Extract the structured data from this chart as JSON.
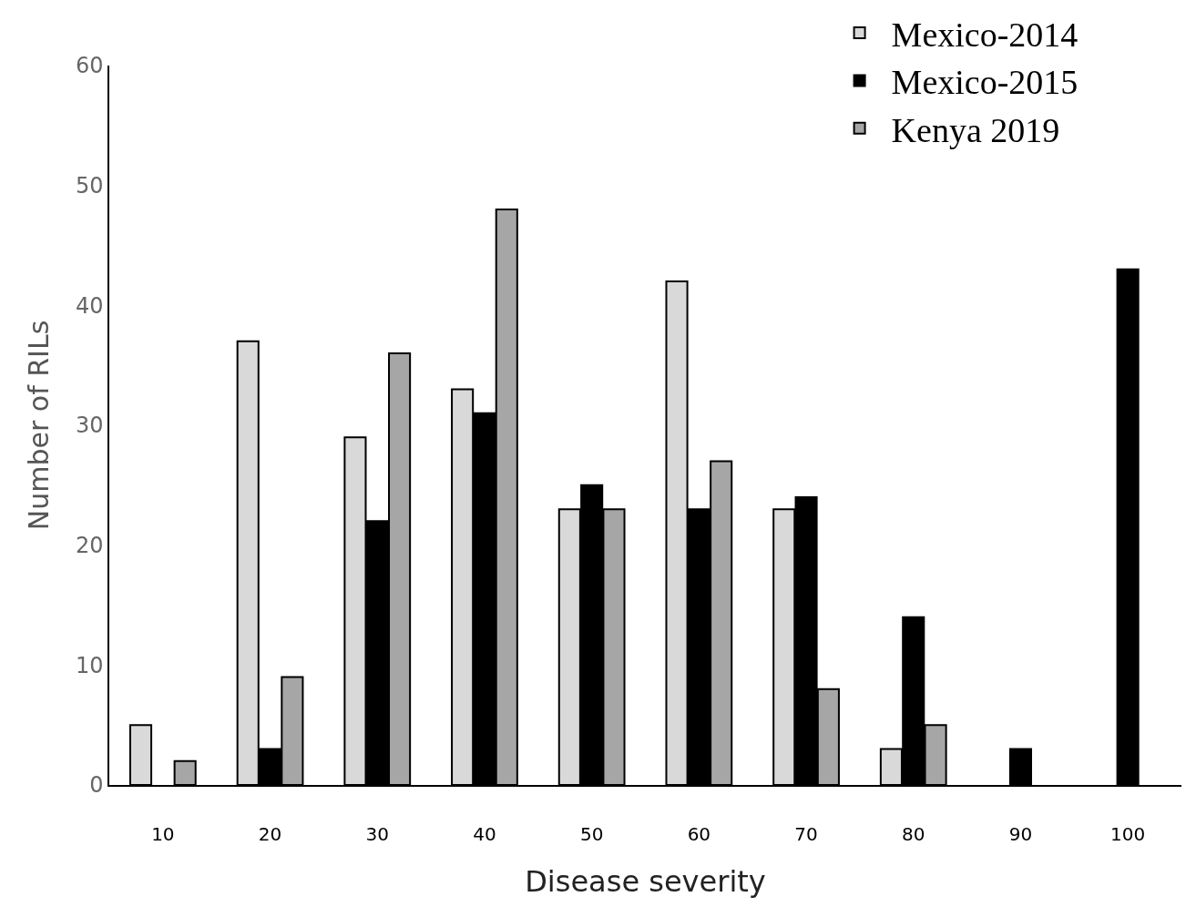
{
  "chart_data": {
    "type": "bar",
    "xlabel": "Disease severity",
    "ylabel": "Number of RILs",
    "categories": [
      "10",
      "20",
      "30",
      "40",
      "50",
      "60",
      "70",
      "80",
      "90",
      "100"
    ],
    "series": [
      {
        "name": "Mexico-2014",
        "color": "#d9d9d9",
        "values": [
          5,
          37,
          29,
          33,
          23,
          42,
          23,
          3,
          null,
          null
        ]
      },
      {
        "name": "Mexico-2015",
        "color": "#000000",
        "values": [
          null,
          3,
          22,
          31,
          25,
          23,
          24,
          14,
          3,
          43
        ]
      },
      {
        "name": "Kenya 2019",
        "color": "#a6a6a6",
        "values": [
          2,
          9,
          36,
          48,
          23,
          27,
          8,
          5,
          null,
          null
        ]
      }
    ],
    "ylim": [
      0,
      60
    ],
    "yticks": [
      0,
      10,
      20,
      30,
      40,
      50,
      60
    ],
    "grid": false,
    "legend": "top right"
  }
}
